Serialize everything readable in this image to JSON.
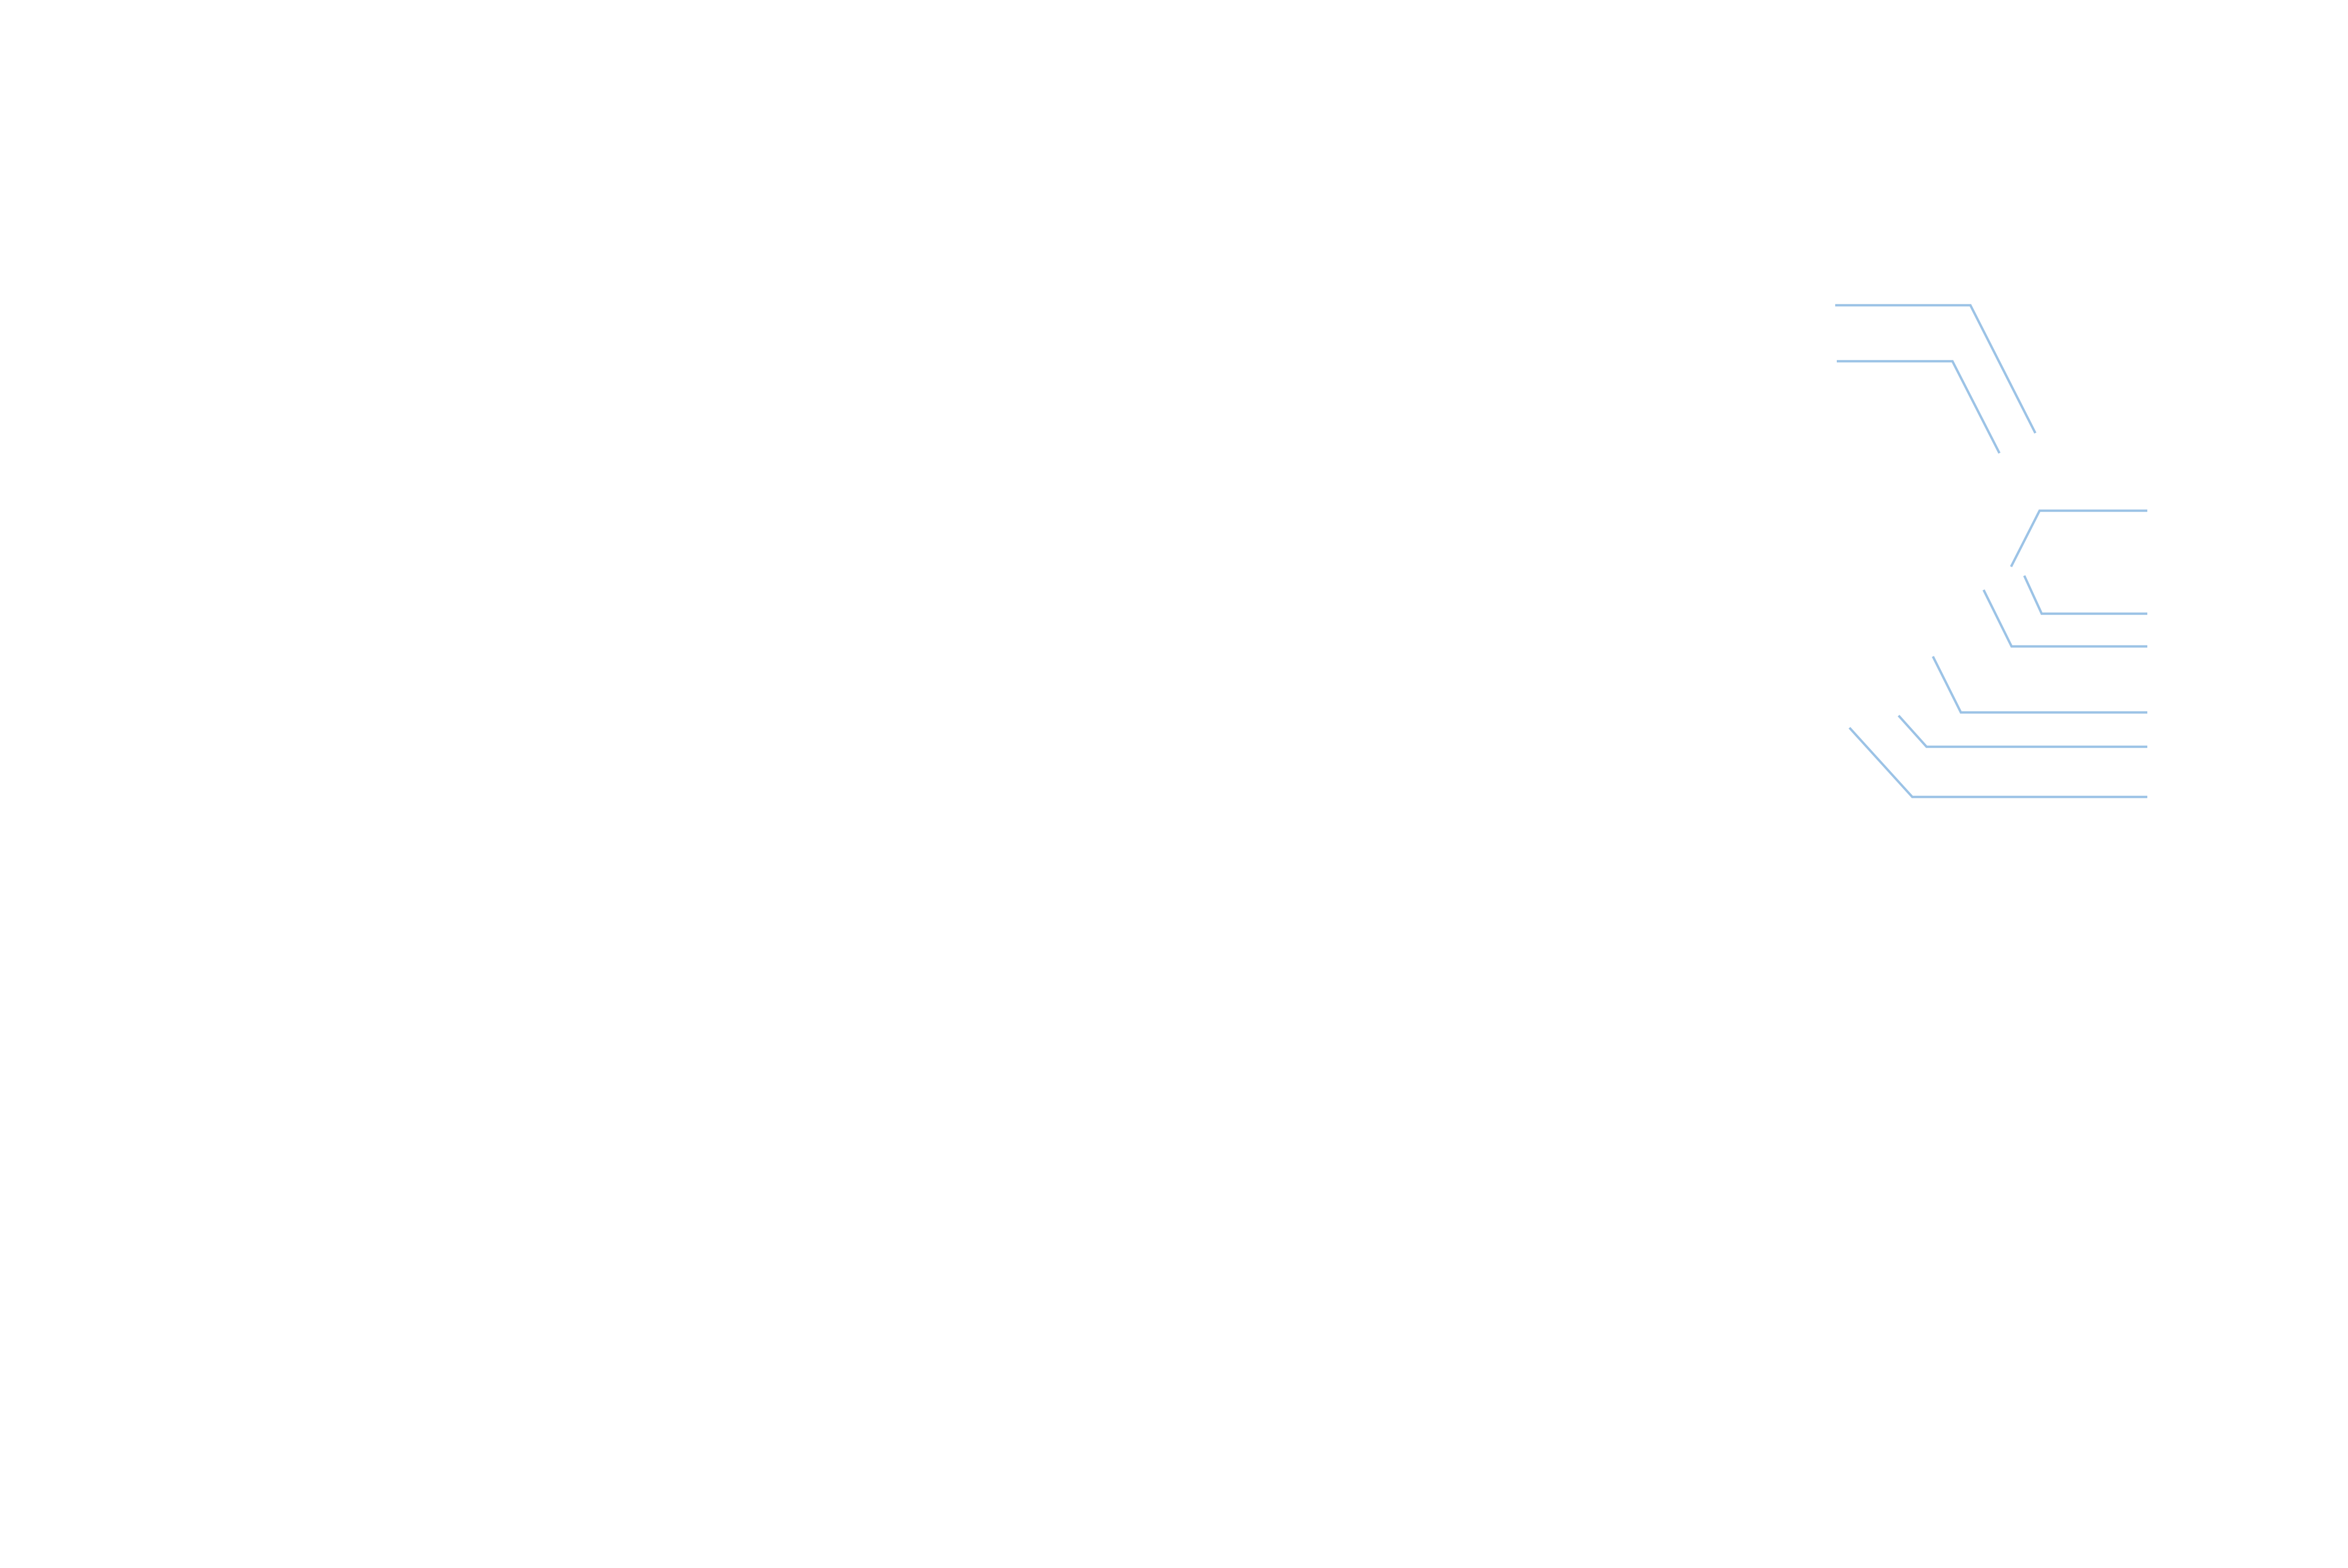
{
  "diagram": {
    "background": "#ffffff",
    "line_color": "#9cc3e6",
    "connectors": [
      {
        "name": "connector-top-1"
      },
      {
        "name": "connector-top-2"
      },
      {
        "name": "connector-right-1"
      },
      {
        "name": "connector-right-2"
      },
      {
        "name": "connector-right-3"
      },
      {
        "name": "connector-right-4"
      },
      {
        "name": "connector-right-5"
      },
      {
        "name": "connector-right-6"
      }
    ]
  }
}
